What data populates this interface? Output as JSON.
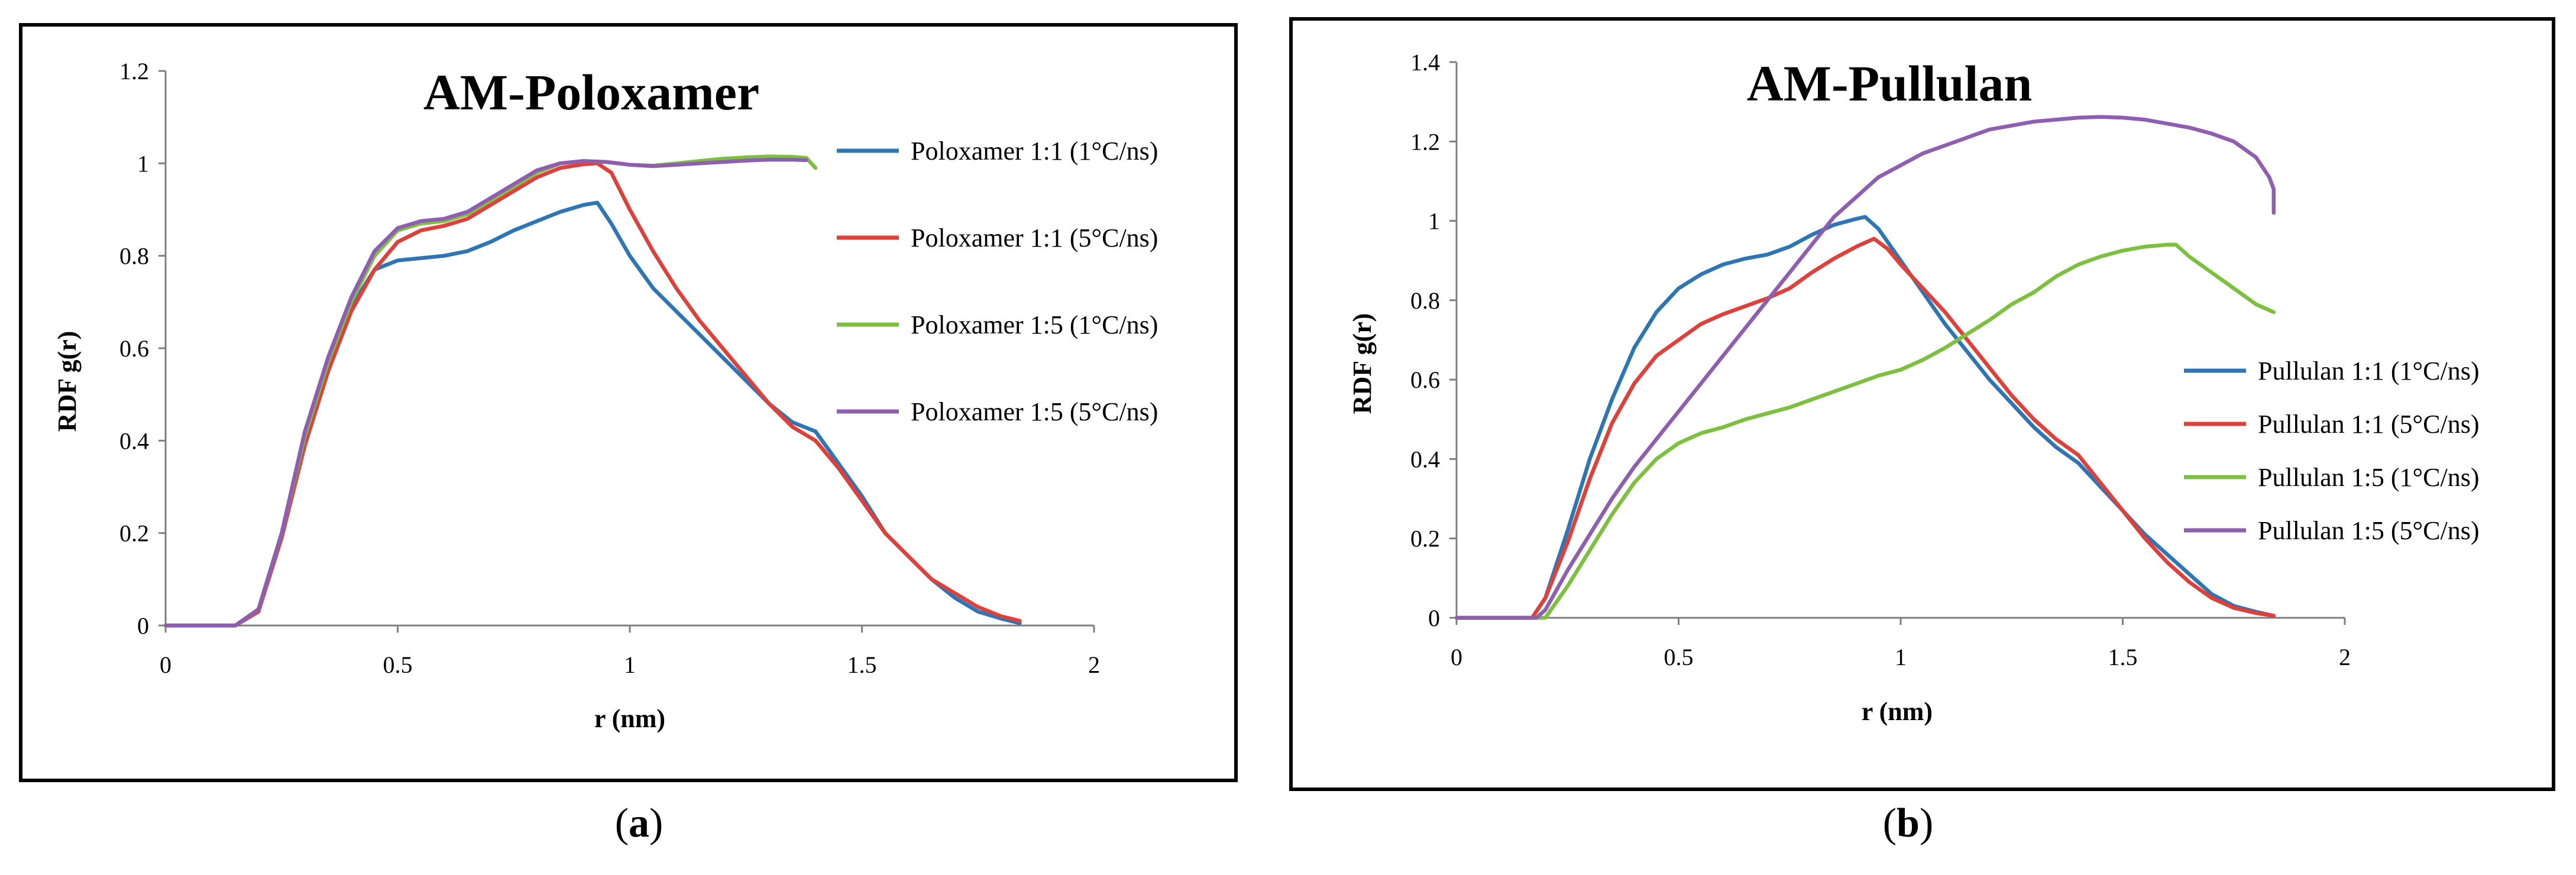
{
  "chart_data": [
    {
      "type": "line",
      "panel_label": "a",
      "title": "AM-Poloxamer",
      "xlabel": "r (nm)",
      "ylabel": "RDF g(r)",
      "xlim": [
        0,
        2
      ],
      "ylim": [
        0,
        1.2
      ],
      "xticks": [
        0,
        0.5,
        1,
        1.5,
        2
      ],
      "xtick_labels": [
        "0",
        "0.5",
        "1",
        "1.5",
        "2"
      ],
      "yticks": [
        0,
        0.2,
        0.4,
        0.6,
        0.8,
        1,
        1.2
      ],
      "ytick_labels": [
        "0",
        "0.2",
        "0.4",
        "0.6",
        "0.8",
        "1",
        "1.2"
      ],
      "legend_position": "right",
      "series": [
        {
          "name": "Poloxamer 1:1 (1°C/ns)",
          "color": "#2e75b6",
          "x": [
            0,
            0.15,
            0.2,
            0.25,
            0.3,
            0.35,
            0.4,
            0.45,
            0.5,
            0.55,
            0.6,
            0.65,
            0.7,
            0.75,
            0.8,
            0.85,
            0.9,
            0.93,
            0.96,
            1.0,
            1.05,
            1.1,
            1.15,
            1.2,
            1.25,
            1.3,
            1.35,
            1.4,
            1.45,
            1.5,
            1.55,
            1.6,
            1.65,
            1.7,
            1.75,
            1.8,
            1.84
          ],
          "y": [
            0,
            0,
            0.03,
            0.2,
            0.4,
            0.55,
            0.69,
            0.77,
            0.79,
            0.795,
            0.8,
            0.81,
            0.83,
            0.855,
            0.875,
            0.895,
            0.91,
            0.915,
            0.87,
            0.8,
            0.73,
            0.68,
            0.63,
            0.58,
            0.53,
            0.48,
            0.44,
            0.42,
            0.35,
            0.28,
            0.2,
            0.15,
            0.1,
            0.06,
            0.03,
            0.015,
            0.005
          ]
        },
        {
          "name": "Poloxamer 1:1 (5°C/ns)",
          "color": "#e0403a",
          "x": [
            0,
            0.15,
            0.2,
            0.25,
            0.3,
            0.35,
            0.4,
            0.45,
            0.5,
            0.55,
            0.6,
            0.65,
            0.7,
            0.75,
            0.8,
            0.85,
            0.9,
            0.93,
            0.96,
            1.0,
            1.05,
            1.1,
            1.15,
            1.2,
            1.25,
            1.3,
            1.35,
            1.4,
            1.45,
            1.5,
            1.55,
            1.6,
            1.65,
            1.7,
            1.75,
            1.8,
            1.84
          ],
          "y": [
            0,
            0,
            0.03,
            0.19,
            0.39,
            0.55,
            0.68,
            0.77,
            0.83,
            0.855,
            0.865,
            0.88,
            0.91,
            0.94,
            0.97,
            0.99,
            0.998,
            1.0,
            0.98,
            0.9,
            0.81,
            0.73,
            0.66,
            0.6,
            0.54,
            0.48,
            0.43,
            0.4,
            0.34,
            0.27,
            0.2,
            0.15,
            0.1,
            0.07,
            0.04,
            0.02,
            0.01
          ]
        },
        {
          "name": "Poloxamer 1:5 (1°C/ns)",
          "color": "#7dbf3f",
          "x": [
            0,
            0.15,
            0.2,
            0.25,
            0.3,
            0.35,
            0.4,
            0.45,
            0.5,
            0.55,
            0.6,
            0.65,
            0.7,
            0.75,
            0.8,
            0.85,
            0.9,
            0.95,
            1.0,
            1.05,
            1.1,
            1.15,
            1.2,
            1.25,
            1.3,
            1.35,
            1.38,
            1.4
          ],
          "y": [
            0,
            0,
            0.035,
            0.2,
            0.41,
            0.57,
            0.7,
            0.8,
            0.855,
            0.87,
            0.875,
            0.89,
            0.92,
            0.95,
            0.98,
            1.0,
            1.005,
            1.003,
            0.997,
            0.995,
            1.0,
            1.005,
            1.01,
            1.013,
            1.015,
            1.014,
            1.012,
            0.99
          ]
        },
        {
          "name": "Poloxamer 1:5 (5°C/ns)",
          "color": "#8e5fb0",
          "x": [
            0,
            0.15,
            0.2,
            0.25,
            0.3,
            0.35,
            0.4,
            0.45,
            0.5,
            0.55,
            0.6,
            0.65,
            0.7,
            0.75,
            0.8,
            0.85,
            0.9,
            0.95,
            1.0,
            1.05,
            1.1,
            1.15,
            1.2,
            1.25,
            1.3,
            1.35,
            1.38
          ],
          "y": [
            0,
            0,
            0.035,
            0.2,
            0.42,
            0.58,
            0.71,
            0.81,
            0.86,
            0.875,
            0.88,
            0.895,
            0.925,
            0.955,
            0.985,
            1.0,
            1.005,
            1.003,
            0.997,
            0.994,
            0.997,
            1.0,
            1.003,
            1.006,
            1.008,
            1.008,
            1.007
          ]
        }
      ]
    },
    {
      "type": "line",
      "panel_label": "b",
      "title": "AM-Pullulan",
      "xlabel": "r (nm)",
      "ylabel": "RDF g(r)",
      "xlim": [
        0,
        2
      ],
      "ylim": [
        0,
        1.4
      ],
      "xticks": [
        0,
        0.5,
        1,
        1.5,
        2
      ],
      "xtick_labels": [
        "0",
        "0.5",
        "1",
        "1.5",
        "2"
      ],
      "yticks": [
        0,
        0.2,
        0.4,
        0.6,
        0.8,
        1,
        1.2,
        1.4
      ],
      "ytick_labels": [
        "0",
        "0.2",
        "0.4",
        "0.6",
        "0.8",
        "1",
        "1.2",
        "1.4"
      ],
      "legend_position": "right",
      "series": [
        {
          "name": "Pullulan 1:1 (1°C/ns)",
          "color": "#2e75b6",
          "x": [
            0,
            0.17,
            0.2,
            0.25,
            0.3,
            0.35,
            0.4,
            0.45,
            0.5,
            0.55,
            0.6,
            0.65,
            0.7,
            0.75,
            0.8,
            0.85,
            0.9,
            0.92,
            0.95,
            1.0,
            1.05,
            1.1,
            1.15,
            1.2,
            1.25,
            1.3,
            1.35,
            1.4,
            1.45,
            1.5,
            1.55,
            1.6,
            1.65,
            1.7,
            1.75,
            1.8,
            1.84
          ],
          "y": [
            0,
            0,
            0.05,
            0.22,
            0.4,
            0.55,
            0.68,
            0.77,
            0.83,
            0.865,
            0.89,
            0.905,
            0.915,
            0.935,
            0.965,
            0.99,
            1.005,
            1.01,
            0.98,
            0.9,
            0.82,
            0.74,
            0.67,
            0.6,
            0.54,
            0.48,
            0.43,
            0.39,
            0.33,
            0.27,
            0.21,
            0.16,
            0.11,
            0.06,
            0.03,
            0.015,
            0.005
          ]
        },
        {
          "name": "Pullulan 1:1 (5°C/ns)",
          "color": "#e0403a",
          "x": [
            0,
            0.17,
            0.2,
            0.25,
            0.3,
            0.35,
            0.4,
            0.45,
            0.5,
            0.55,
            0.6,
            0.65,
            0.7,
            0.75,
            0.8,
            0.85,
            0.9,
            0.94,
            0.97,
            1.0,
            1.05,
            1.1,
            1.15,
            1.2,
            1.25,
            1.3,
            1.35,
            1.4,
            1.45,
            1.5,
            1.55,
            1.6,
            1.65,
            1.7,
            1.75,
            1.8,
            1.84
          ],
          "y": [
            0,
            0,
            0.05,
            0.19,
            0.35,
            0.49,
            0.59,
            0.66,
            0.7,
            0.74,
            0.765,
            0.785,
            0.805,
            0.83,
            0.87,
            0.905,
            0.935,
            0.955,
            0.93,
            0.89,
            0.83,
            0.77,
            0.7,
            0.63,
            0.56,
            0.5,
            0.45,
            0.41,
            0.34,
            0.27,
            0.2,
            0.14,
            0.09,
            0.05,
            0.025,
            0.012,
            0.005
          ]
        },
        {
          "name": "Pullulan 1:5 (1°C/ns)",
          "color": "#7dbf3f",
          "x": [
            0,
            0.2,
            0.25,
            0.3,
            0.35,
            0.4,
            0.45,
            0.5,
            0.55,
            0.6,
            0.65,
            0.7,
            0.75,
            0.8,
            0.85,
            0.9,
            0.95,
            1.0,
            1.05,
            1.1,
            1.15,
            1.2,
            1.25,
            1.3,
            1.35,
            1.4,
            1.45,
            1.5,
            1.55,
            1.6,
            1.62,
            1.65,
            1.7,
            1.75,
            1.8,
            1.84
          ],
          "y": [
            0,
            0,
            0.08,
            0.17,
            0.26,
            0.34,
            0.4,
            0.44,
            0.465,
            0.48,
            0.5,
            0.515,
            0.53,
            0.55,
            0.57,
            0.59,
            0.61,
            0.625,
            0.65,
            0.68,
            0.715,
            0.75,
            0.79,
            0.82,
            0.86,
            0.89,
            0.91,
            0.925,
            0.935,
            0.94,
            0.94,
            0.91,
            0.87,
            0.83,
            0.79,
            0.77
          ]
        },
        {
          "name": "Pullulan 1:5 (5°C/ns)",
          "color": "#8e5fb0",
          "x": [
            0,
            0.18,
            0.2,
            0.25,
            0.3,
            0.35,
            0.4,
            0.45,
            0.5,
            0.55,
            0.6,
            0.65,
            0.7,
            0.75,
            0.8,
            0.85,
            0.9,
            0.95,
            1.0,
            1.05,
            1.1,
            1.15,
            1.2,
            1.25,
            1.3,
            1.35,
            1.4,
            1.45,
            1.5,
            1.55,
            1.6,
            1.65,
            1.7,
            1.75,
            1.8,
            1.83,
            1.84,
            1.84
          ],
          "y": [
            0,
            0,
            0.02,
            0.12,
            0.21,
            0.3,
            0.38,
            0.45,
            0.52,
            0.59,
            0.66,
            0.73,
            0.8,
            0.87,
            0.94,
            1.01,
            1.06,
            1.11,
            1.14,
            1.17,
            1.19,
            1.21,
            1.23,
            1.24,
            1.25,
            1.255,
            1.26,
            1.262,
            1.26,
            1.255,
            1.245,
            1.235,
            1.22,
            1.2,
            1.16,
            1.11,
            1.08,
            1.02
          ]
        }
      ]
    }
  ]
}
